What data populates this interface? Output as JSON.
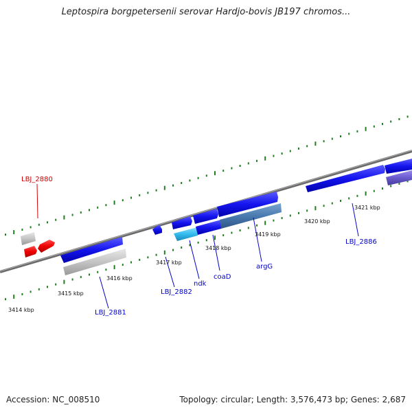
{
  "title": "Leptospira borgpetersenii serovar Hardjo-bovis JB197 chromos...",
  "footer": {
    "accession": "Accession: NC_008510",
    "summary": "Topology: circular; Length: 3,576,473 bp; Genes: 2,687"
  },
  "ticks": [
    {
      "id": "t3414",
      "label": "3414 kbp"
    },
    {
      "id": "t3415",
      "label": "3415 kbp"
    },
    {
      "id": "t3416",
      "label": "3416 kbp"
    },
    {
      "id": "t3417",
      "label": "3417 kbp"
    },
    {
      "id": "t3418",
      "label": "3418 kbp"
    },
    {
      "id": "t3419",
      "label": "3419 kbp"
    },
    {
      "id": "t3420",
      "label": "3420 kbp"
    },
    {
      "id": "t3421",
      "label": "3421 kbp"
    }
  ],
  "gene_labels": [
    {
      "id": "g2880",
      "text": "LBJ_2880"
    },
    {
      "id": "g2881",
      "text": "LBJ_2881"
    },
    {
      "id": "g2882",
      "text": "LBJ_2882"
    },
    {
      "id": "gndk",
      "text": "ndk"
    },
    {
      "id": "gcoaD",
      "text": "coaD"
    },
    {
      "id": "gargG",
      "text": "argG"
    },
    {
      "id": "g2886",
      "text": "LBJ_2886"
    }
  ],
  "colors": {
    "cds_blue": "#1a1aee",
    "pseudo_grey": "#c8c8c8",
    "rna_red": "#ee0000",
    "cyan": "#33bbee",
    "steel": "#4a7ab0",
    "purple": "#6a5acd",
    "backbone": "#808080",
    "tick_green": "#1f7f1f",
    "label_blue": "#0000cc",
    "label_red": "#cc0000"
  }
}
